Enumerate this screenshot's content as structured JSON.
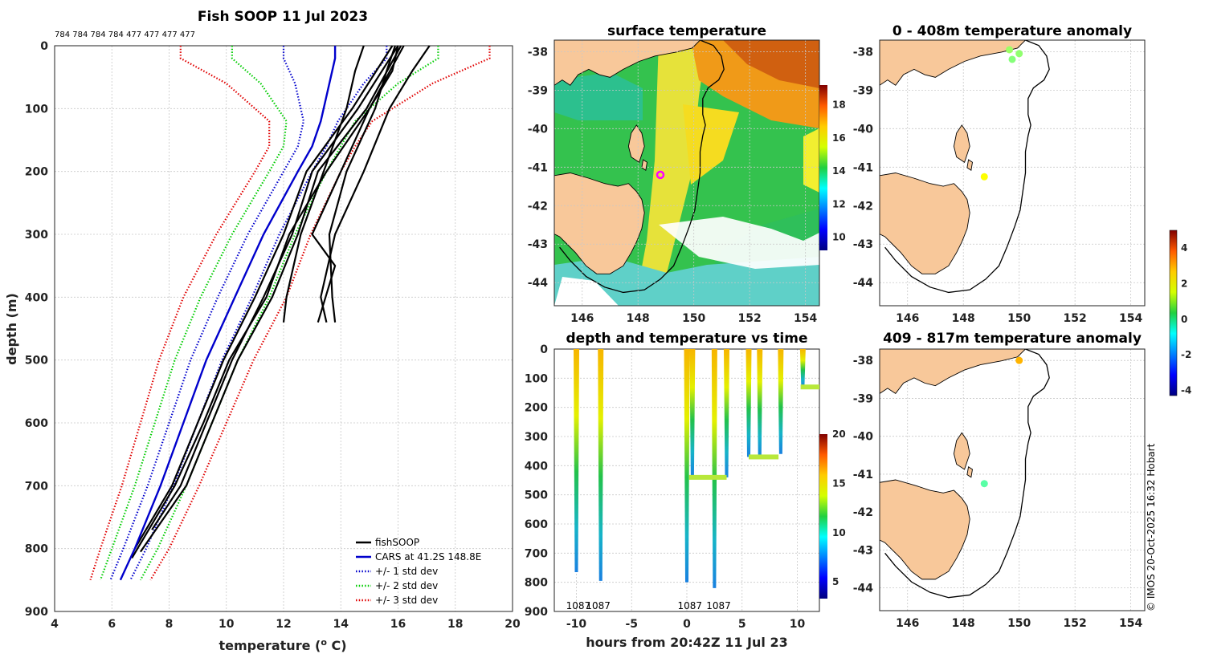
{
  "chart_data": [
    {
      "type": "line",
      "title": "Fish SOOP 11 Jul 2023",
      "subtitle_ids": "784 784 784 784 477 477 477 477",
      "xlabel": "temperature (o C)",
      "ylabel": "depth (m)",
      "xlim": [
        4,
        20
      ],
      "ylim": [
        900,
        0
      ],
      "xticks": [
        4,
        6,
        8,
        10,
        12,
        14,
        16,
        18,
        20
      ],
      "yticks": [
        0,
        100,
        200,
        300,
        400,
        500,
        600,
        700,
        800,
        900
      ],
      "legend": [
        {
          "label": "fishSOOP",
          "color": "#000000",
          "style": "solid"
        },
        {
          "label": "CARS at 41.2S 148.8E",
          "color": "#0000cc",
          "style": "solid"
        },
        {
          "label": "+/- 1 std dev",
          "color": "#0000cc",
          "style": "dotted"
        },
        {
          "label": "+/- 2 std dev",
          "color": "#00cc00",
          "style": "dotted"
        },
        {
          "label": "+/- 3 std dev",
          "color": "#e00000",
          "style": "dotted"
        }
      ],
      "legend_location": "bottom-right",
      "depths": [
        0,
        20,
        60,
        120,
        160,
        200,
        300,
        400,
        500,
        600,
        700,
        800,
        850
      ],
      "cars_mean": [
        13.8,
        13.8,
        13.6,
        13.3,
        13.0,
        12.5,
        11.3,
        10.3,
        9.3,
        8.5,
        7.7,
        6.8,
        6.3
      ],
      "cars_std": [
        1.8,
        1.8,
        1.2,
        0.6,
        0.5,
        0.5,
        0.55,
        0.6,
        0.55,
        0.5,
        0.45,
        0.4,
        0.35
      ],
      "series": [
        {
          "name": "fishSOOP 1",
          "depth": [
            0,
            40,
            100,
            200,
            300,
            400,
            440
          ],
          "temp": [
            15.9,
            15.6,
            15.2,
            14.2,
            13.6,
            13.7,
            13.8
          ]
        },
        {
          "name": "fishSOOP 2",
          "depth": [
            0,
            40,
            100,
            200,
            300,
            350,
            440
          ],
          "temp": [
            16.0,
            15.8,
            15.0,
            14.0,
            13.0,
            13.8,
            13.2
          ]
        },
        {
          "name": "fishSOOP 3",
          "depth": [
            0,
            40,
            100,
            200,
            300,
            400,
            440
          ],
          "temp": [
            14.8,
            14.5,
            14.2,
            13.4,
            12.6,
            12.1,
            12.0
          ]
        },
        {
          "name": "fishSOOP 4",
          "depth": [
            0,
            40,
            100,
            200,
            300,
            400,
            440
          ],
          "temp": [
            17.1,
            16.5,
            15.7,
            14.8,
            13.8,
            13.3,
            13.5
          ]
        },
        {
          "name": "fishSOOP 5",
          "depth": [
            0,
            100,
            200,
            300,
            400,
            500,
            600,
            700,
            770
          ],
          "temp": [
            16.0,
            14.6,
            13.0,
            12.3,
            11.3,
            10.2,
            9.3,
            8.4,
            7.4
          ]
        },
        {
          "name": "fishSOOP 6",
          "depth": [
            0,
            100,
            200,
            300,
            400,
            500,
            600,
            700,
            800
          ],
          "temp": [
            15.8,
            14.4,
            12.8,
            12.0,
            11.0,
            9.9,
            9.0,
            8.1,
            6.8
          ]
        },
        {
          "name": "fishSOOP 7",
          "depth": [
            0,
            100,
            200,
            300,
            400,
            500,
            600,
            700,
            805
          ],
          "temp": [
            16.1,
            14.9,
            13.2,
            12.5,
            11.6,
            10.4,
            9.5,
            8.6,
            7.0
          ]
        },
        {
          "name": "fishSOOP 8",
          "depth": [
            0,
            100,
            200,
            300,
            400,
            500,
            600,
            700,
            815
          ],
          "temp": [
            16.2,
            15.0,
            13.5,
            12.2,
            11.4,
            10.1,
            9.2,
            8.2,
            6.7
          ]
        }
      ]
    },
    {
      "type": "heatmap",
      "title": "surface temperature",
      "xlim": [
        145,
        154.5
      ],
      "ylim": [
        -44.6,
        -37.7
      ],
      "xticks": [
        146,
        148,
        150,
        152,
        154
      ],
      "yticks": [
        -38,
        -39,
        -40,
        -41,
        -42,
        -43,
        -44
      ],
      "colorbar": {
        "min": 9.2,
        "max": 19.2,
        "ticks": [
          10,
          12,
          14,
          16,
          18
        ]
      }
    },
    {
      "type": "scatter",
      "title": "depth and temperature vs time",
      "xlabel": "hours from 20:42Z 11 Jul 23",
      "xlim": [
        -12,
        12
      ],
      "ylim": [
        900,
        0
      ],
      "xticks": [
        -10,
        -5,
        0,
        5,
        10
      ],
      "yticks": [
        0,
        100,
        200,
        300,
        400,
        500,
        600,
        700,
        800,
        900
      ],
      "annotations": [
        "1087",
        "1087",
        "1087",
        "1087"
      ],
      "colorbar": {
        "min": 3.3,
        "max": 20,
        "ticks": [
          5,
          10,
          15,
          20
        ]
      },
      "dives": [
        {
          "t": -10.0,
          "max_depth": 765,
          "surf_temp": 15.5
        },
        {
          "t": -7.8,
          "max_depth": 795,
          "surf_temp": 15.5
        },
        {
          "t": 0.0,
          "max_depth": 800,
          "surf_temp": 15.2
        },
        {
          "t": 2.5,
          "max_depth": 820,
          "surf_temp": 15.3
        },
        {
          "t": 0.5,
          "max_depth": 440,
          "surf_temp": 15.8
        },
        {
          "t": 3.6,
          "max_depth": 440,
          "surf_temp": 15.8
        },
        {
          "t": 5.6,
          "max_depth": 370,
          "surf_temp": 15.7
        },
        {
          "t": 6.6,
          "max_depth": 375,
          "surf_temp": 15.7
        },
        {
          "t": 8.5,
          "max_depth": 360,
          "surf_temp": 15.6
        },
        {
          "t": 10.5,
          "max_depth": 130,
          "surf_temp": 15.5
        }
      ]
    },
    {
      "type": "scatter",
      "title": "0 - 408m temperature anomaly",
      "xlim": [
        145,
        154.5
      ],
      "ylim": [
        -44.6,
        -37.7
      ],
      "xticks": [
        146,
        148,
        150,
        152,
        154
      ],
      "yticks": [
        -38,
        -39,
        -40,
        -41,
        -42,
        -43,
        -44
      ],
      "points": [
        {
          "lon": 149.65,
          "lat": -37.95,
          "anomaly": 0.6
        },
        {
          "lon": 149.75,
          "lat": -38.2,
          "anomaly": 0.4
        },
        {
          "lon": 150.0,
          "lat": -38.05,
          "anomaly": 0.5
        },
        {
          "lon": 148.75,
          "lat": -41.25,
          "anomaly": 1.5
        }
      ]
    },
    {
      "type": "scatter",
      "title": "409 - 817m temperature anomaly",
      "xlim": [
        145,
        154.5
      ],
      "ylim": [
        -44.6,
        -37.7
      ],
      "xticks": [
        146,
        148,
        150,
        152,
        154
      ],
      "yticks": [
        -38,
        -39,
        -40,
        -41,
        -42,
        -43,
        -44
      ],
      "points": [
        {
          "lon": 150.0,
          "lat": -38.0,
          "anomaly": 2.2
        },
        {
          "lon": 148.75,
          "lat": -41.25,
          "anomaly": 0.0
        }
      ],
      "colorbar": {
        "min": -4.3,
        "max": 5,
        "ticks": [
          -4,
          -2,
          0,
          2,
          4
        ]
      }
    }
  ],
  "credit": "© IMOS 20-Oct-2025 16:32 Hobart",
  "colors": {
    "land": "#f8c89a",
    "cars": "#0000cc",
    "std1": "#0000cc",
    "std2": "#00cc00",
    "std3": "#e00000",
    "soop": "#000000"
  }
}
